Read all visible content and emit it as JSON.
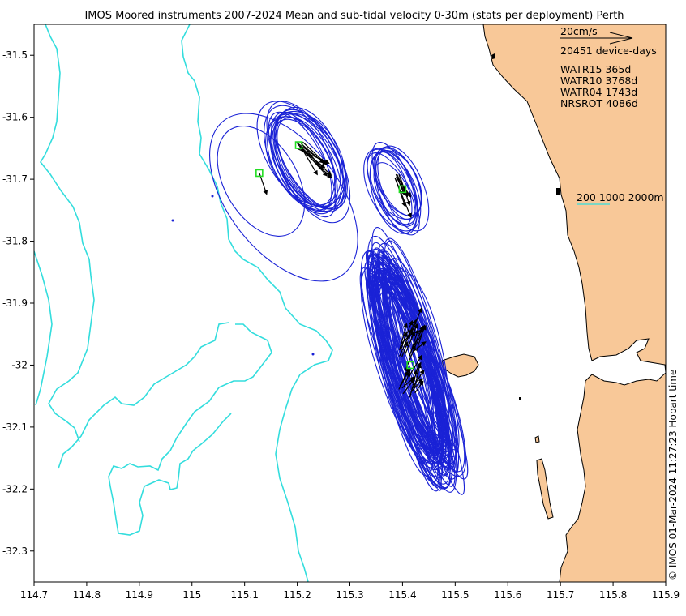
{
  "title": "IMOS Moored instruments 2007-2024 Mean and sub-tidal velocity 0-30m (stats per deployment) Perth",
  "legend": {
    "scale_label": "20cm/s",
    "device_days": "20451 device-days",
    "sites": [
      {
        "name": "WATR15",
        "days": "365d",
        "text": "WATR15 365d"
      },
      {
        "name": "WATR10",
        "days": "3768d",
        "text": "WATR10 3768d"
      },
      {
        "name": "WATR04",
        "days": "1743d",
        "text": "WATR04 1743d"
      },
      {
        "name": "NRSROT",
        "days": "4086d",
        "text": "NRSROT 4086d"
      }
    ]
  },
  "bathymetry_label": "200 1000 2000m",
  "credit": "© IMOS 01-Mar-2024 11:27:23 Hobart time",
  "axes": {
    "x_ticks": [
      "114.7",
      "114.8",
      "114.9",
      "115",
      "115.1",
      "115.2",
      "115.3",
      "115.4",
      "115.5",
      "115.6",
      "115.7",
      "115.8",
      "115.9"
    ],
    "y_ticks": [
      "-31.5",
      "-31.6",
      "-31.7",
      "-31.8",
      "-31.9",
      "-32",
      "-32.1",
      "-32.2",
      "-32.3"
    ],
    "xlim": [
      114.7,
      115.9
    ],
    "ylim": [
      -32.35,
      -31.45
    ]
  },
  "colors": {
    "land": "#f8c898",
    "isobath": "#33dddd",
    "ellipse": "#1a22d6",
    "marker": "#22dd22",
    "arrow": "#000000"
  },
  "stations": [
    {
      "name": "WATR15",
      "lon": 115.128,
      "lat": -31.69,
      "u": 0.3,
      "v": -0.9
    },
    {
      "name": "WATR10",
      "lon": 115.203,
      "lat": -31.645,
      "u": 1.2,
      "v": -1.4
    },
    {
      "name": "WATR04",
      "lon": 115.4,
      "lat": -31.716,
      "u": 0.9,
      "v": -1.9
    },
    {
      "name": "NRSROT",
      "lon": 115.415,
      "lat": -32.0,
      "u": 0.6,
      "v": 1.8
    }
  ]
}
